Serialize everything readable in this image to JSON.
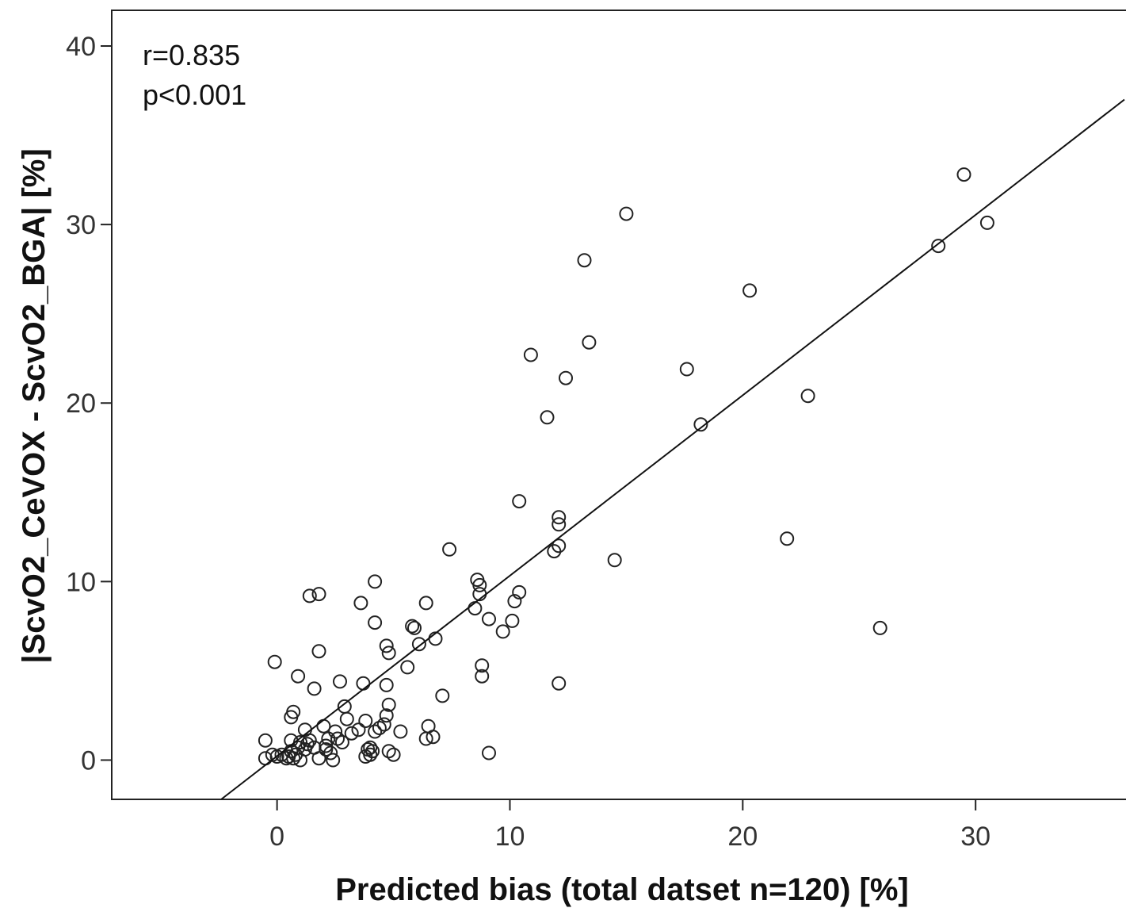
{
  "chart_data": {
    "type": "scatter",
    "title": "",
    "xlabel": "Predicted bias (total datset n=120)  [%]",
    "ylabel": "|ScvO2_CeVOX - ScvO2_BGA| [%]",
    "xlim": [
      -7.1,
      36.8
    ],
    "ylim": [
      -2.2,
      42.0
    ],
    "x_ticks": [
      0,
      10,
      20,
      30
    ],
    "y_ticks": [
      0,
      10,
      20,
      30,
      40
    ],
    "grid": false,
    "annotations": [
      "r=0.835",
      "p<0.001"
    ],
    "fit_line": {
      "x1": -2.4,
      "y1": -2.2,
      "x2": 36.8,
      "y2": 37.0
    },
    "points": [
      [
        -0.5,
        1.1
      ],
      [
        -0.5,
        0.1
      ],
      [
        -0.2,
        0.3
      ],
      [
        0.0,
        0.2
      ],
      [
        0.2,
        0.3
      ],
      [
        0.4,
        0.1
      ],
      [
        0.5,
        0.2
      ],
      [
        0.6,
        0.5
      ],
      [
        0.7,
        0.1
      ],
      [
        0.8,
        0.3
      ],
      [
        1.0,
        0.0
      ],
      [
        0.6,
        1.1
      ],
      [
        1.0,
        1.0
      ],
      [
        1.2,
        0.6
      ],
      [
        1.3,
        0.9
      ],
      [
        1.4,
        1.1
      ],
      [
        1.6,
        0.7
      ],
      [
        1.8,
        0.1
      ],
      [
        2.0,
        1.9
      ],
      [
        2.2,
        1.2
      ],
      [
        2.3,
        0.4
      ],
      [
        2.4,
        0.0
      ],
      [
        2.5,
        1.6
      ],
      [
        2.8,
        1.0
      ],
      [
        2.1,
        0.6
      ],
      [
        3.0,
        2.3
      ],
      [
        3.2,
        1.5
      ],
      [
        3.5,
        1.7
      ],
      [
        3.8,
        2.2
      ],
      [
        4.0,
        0.7
      ],
      [
        4.1,
        0.5
      ],
      [
        4.2,
        1.6
      ],
      [
        4.4,
        1.8
      ],
      [
        4.6,
        2.0
      ],
      [
        4.8,
        3.1
      ],
      [
        4.8,
        0.5
      ],
      [
        5.0,
        0.3
      ],
      [
        5.3,
        1.6
      ],
      [
        3.8,
        0.2
      ],
      [
        4.0,
        0.3
      ],
      [
        3.9,
        0.6
      ],
      [
        1.2,
        1.7
      ],
      [
        2.1,
        0.8
      ],
      [
        0.9,
        0.7
      ],
      [
        0.6,
        2.4
      ],
      [
        0.7,
        2.7
      ],
      [
        2.6,
        1.2
      ],
      [
        2.9,
        3.0
      ],
      [
        -0.1,
        5.5
      ],
      [
        0.9,
        4.7
      ],
      [
        1.6,
        4.0
      ],
      [
        1.8,
        6.1
      ],
      [
        2.7,
        4.4
      ],
      [
        3.7,
        4.3
      ],
      [
        4.7,
        4.2
      ],
      [
        4.7,
        2.5
      ],
      [
        1.4,
        9.2
      ],
      [
        1.8,
        9.3
      ],
      [
        3.6,
        8.8
      ],
      [
        4.2,
        10.0
      ],
      [
        4.2,
        7.7
      ],
      [
        4.7,
        6.4
      ],
      [
        4.8,
        6.0
      ],
      [
        5.6,
        5.2
      ],
      [
        5.8,
        7.5
      ],
      [
        5.9,
        7.4
      ],
      [
        6.1,
        6.5
      ],
      [
        6.4,
        8.8
      ],
      [
        6.8,
        6.8
      ],
      [
        7.1,
        3.6
      ],
      [
        7.4,
        11.8
      ],
      [
        6.4,
        1.2
      ],
      [
        6.5,
        1.9
      ],
      [
        6.7,
        1.3
      ],
      [
        8.5,
        8.5
      ],
      [
        8.6,
        10.1
      ],
      [
        8.7,
        9.8
      ],
      [
        8.7,
        9.3
      ],
      [
        8.8,
        5.3
      ],
      [
        8.8,
        4.7
      ],
      [
        9.1,
        7.9
      ],
      [
        9.1,
        0.4
      ],
      [
        9.7,
        7.2
      ],
      [
        10.1,
        7.8
      ],
      [
        10.2,
        8.9
      ],
      [
        10.4,
        9.4
      ],
      [
        10.4,
        14.5
      ],
      [
        10.9,
        22.7
      ],
      [
        11.6,
        19.2
      ],
      [
        11.9,
        11.7
      ],
      [
        12.1,
        12.0
      ],
      [
        12.1,
        13.2
      ],
      [
        12.1,
        13.6
      ],
      [
        12.1,
        4.3
      ],
      [
        12.4,
        21.4
      ],
      [
        13.2,
        28.0
      ],
      [
        13.4,
        23.4
      ],
      [
        14.5,
        11.2
      ],
      [
        15.0,
        30.6
      ],
      [
        17.6,
        21.9
      ],
      [
        18.2,
        18.8
      ],
      [
        20.3,
        26.3
      ],
      [
        21.9,
        12.4
      ],
      [
        22.8,
        20.4
      ],
      [
        25.9,
        7.4
      ],
      [
        28.4,
        28.8
      ],
      [
        29.5,
        32.8
      ],
      [
        30.5,
        30.1
      ]
    ]
  }
}
